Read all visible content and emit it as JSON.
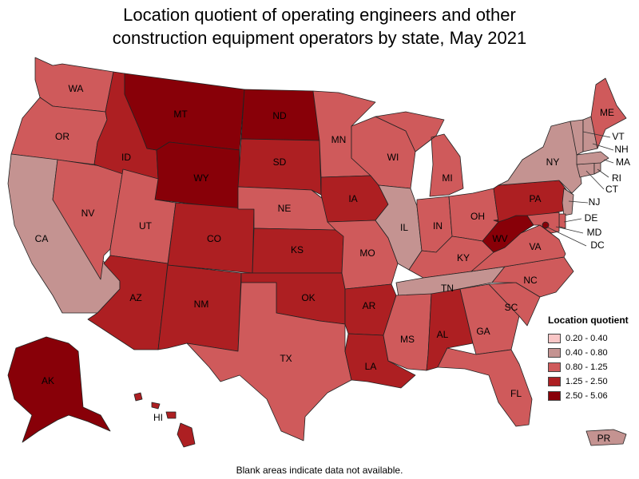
{
  "title_line1": "Location quotient of operating engineers and other",
  "title_line2": "construction equipment operators by state, May 2021",
  "legend": {
    "title": "Location quotient",
    "bins": [
      {
        "label": "0.20 - 0.40",
        "color": "#f9c6c6"
      },
      {
        "label": "0.40 - 0.80",
        "color": "#c49391"
      },
      {
        "label": "0.80 - 1.25",
        "color": "#cf5a5b"
      },
      {
        "label": "1.25 - 2.50",
        "color": "#ad1f22"
      },
      {
        "label": "2.50 - 5.06",
        "color": "#880008"
      }
    ]
  },
  "footnote": "Blank areas indicate data not available.",
  "states": {
    "WA": 2,
    "OR": 2,
    "CA": 1,
    "NV": 2,
    "ID": 3,
    "MT": 4,
    "WY": 4,
    "UT": 2,
    "AZ": 3,
    "CO": 3,
    "NM": 3,
    "ND": 4,
    "SD": 3,
    "NE": 2,
    "KS": 3,
    "OK": 3,
    "TX": 2,
    "MN": 2,
    "IA": 3,
    "MO": 2,
    "AR": 3,
    "LA": 3,
    "WI": 2,
    "IL": 1,
    "MI": 2,
    "IN": 2,
    "OH": 2,
    "KY": 2,
    "TN": 1,
    "MS": 2,
    "AL": 3,
    "GA": 2,
    "FL": 2,
    "SC": 2,
    "NC": 2,
    "VA": 2,
    "WV": 4,
    "PA": 3,
    "NY": 1,
    "VT": 1,
    "NH": 1,
    "ME": 2,
    "MA": 1,
    "RI": 1,
    "CT": 1,
    "NJ": 1,
    "DE": 2,
    "MD": 2,
    "DC": 4,
    "AK": 4,
    "HI": 3,
    "PR": 1
  }
}
